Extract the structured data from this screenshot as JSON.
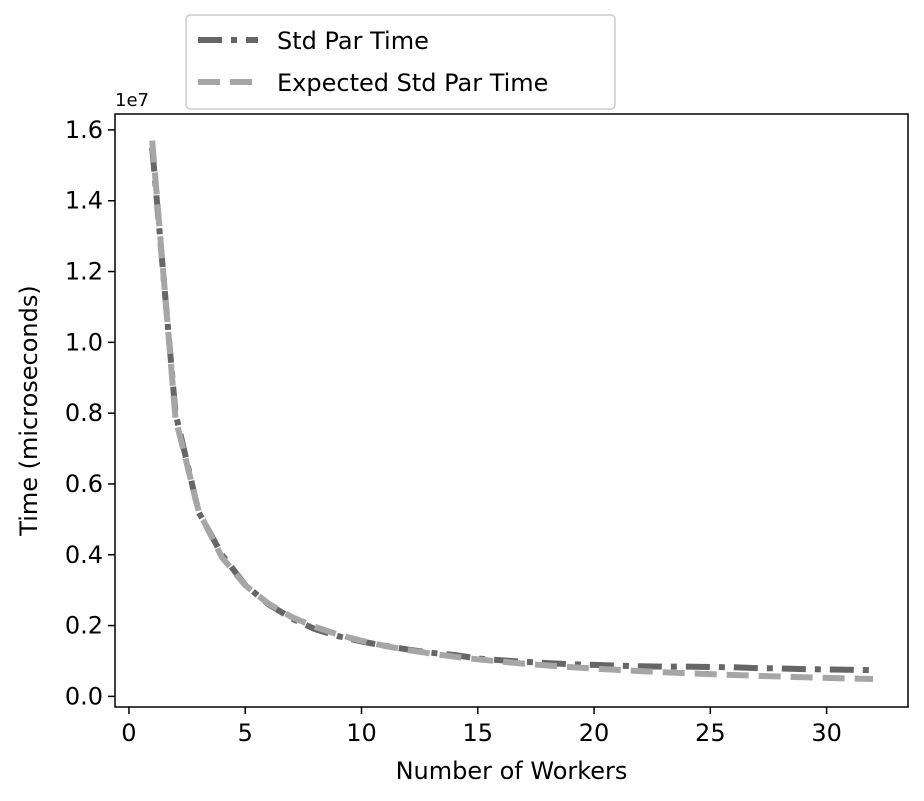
{
  "chart_data": {
    "type": "line",
    "title": "",
    "xlabel": "Number of Workers",
    "ylabel": "Time (microseconds)",
    "y_offset_label": "1e7",
    "xlim": [
      -0.6,
      33.5
    ],
    "ylim": [
      -0.03,
      1.645
    ],
    "y_scale_factor": 10000000,
    "x_ticks": [
      0,
      5,
      10,
      15,
      20,
      25,
      30
    ],
    "x_tick_labels": [
      "0",
      "5",
      "10",
      "15",
      "20",
      "25",
      "30"
    ],
    "y_ticks": [
      0.0,
      0.2,
      0.4,
      0.6,
      0.8,
      1.0,
      1.2,
      1.4,
      1.6
    ],
    "y_tick_labels": [
      "0.0",
      "0.2",
      "0.4",
      "0.6",
      "0.8",
      "1.0",
      "1.2",
      "1.4",
      "1.6"
    ],
    "grid": false,
    "legend_position": "top-left, above plot",
    "series": [
      {
        "name": "Std Par Time",
        "color": "#666666",
        "style": "dashdot",
        "x": [
          1,
          2,
          3,
          4,
          5,
          6,
          7,
          8,
          9,
          10,
          11,
          12,
          13,
          14,
          15,
          16,
          17,
          18,
          19,
          20,
          21,
          22,
          23,
          24,
          25,
          26,
          27,
          28,
          29,
          30,
          31,
          32
        ],
        "y": [
          1.55,
          0.8,
          0.52,
          0.4,
          0.315,
          0.26,
          0.22,
          0.19,
          0.17,
          0.155,
          0.143,
          0.132,
          0.123,
          0.117,
          0.107,
          0.102,
          0.098,
          0.094,
          0.091,
          0.089,
          0.087,
          0.085,
          0.084,
          0.084,
          0.083,
          0.082,
          0.08,
          0.079,
          0.077,
          0.076,
          0.075,
          0.074
        ]
      },
      {
        "name": "Expected Std Par Time",
        "color": "#a6a6a6",
        "style": "dashed",
        "x": [
          1,
          2,
          3,
          4,
          5,
          6,
          7,
          8,
          9,
          10,
          11,
          12,
          13,
          14,
          15,
          16,
          17,
          18,
          19,
          20,
          21,
          22,
          23,
          24,
          25,
          26,
          27,
          28,
          29,
          30,
          31,
          32
        ],
        "y": [
          1.57,
          0.785,
          0.523,
          0.3925,
          0.314,
          0.2617,
          0.2243,
          0.1963,
          0.1744,
          0.157,
          0.1427,
          0.1308,
          0.1208,
          0.1121,
          0.1047,
          0.0981,
          0.0924,
          0.0872,
          0.0826,
          0.0785,
          0.0748,
          0.0714,
          0.0683,
          0.0654,
          0.0628,
          0.0604,
          0.0581,
          0.0561,
          0.0541,
          0.0523,
          0.0506,
          0.0491
        ]
      }
    ]
  }
}
